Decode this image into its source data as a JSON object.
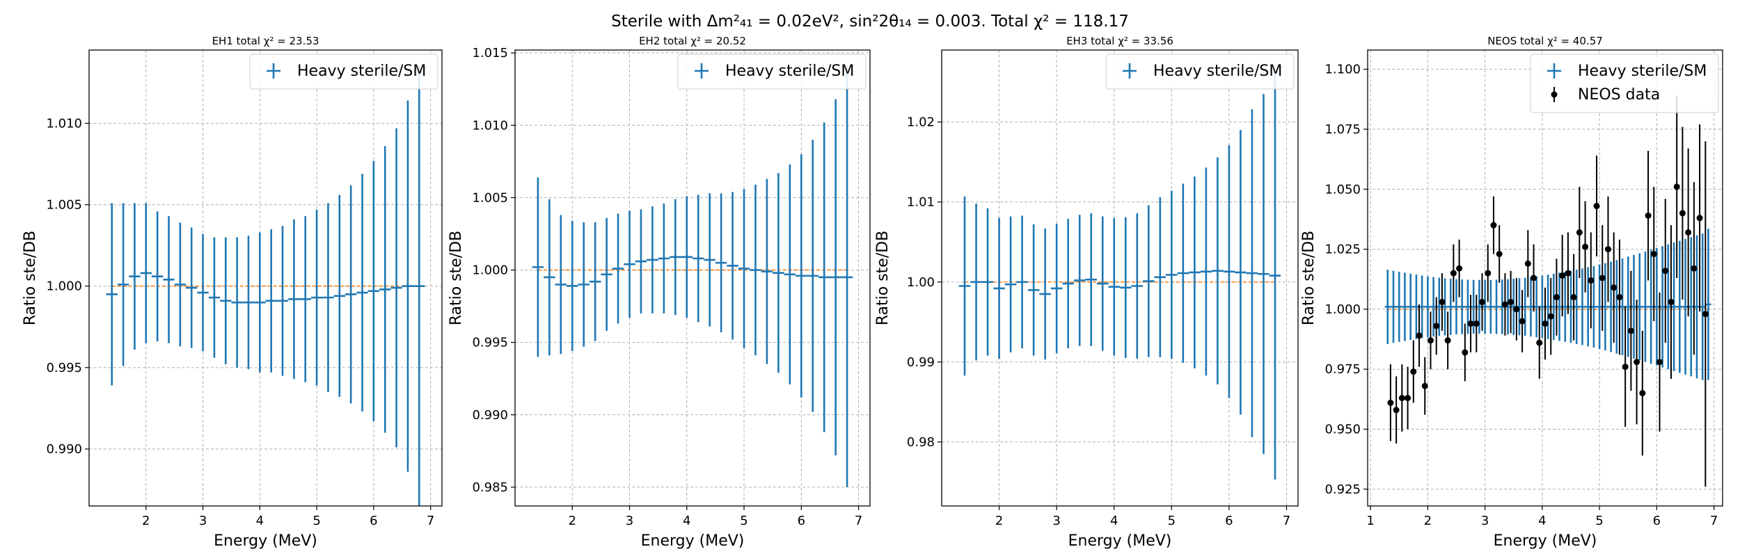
{
  "suptitle": "Sterile with Δm²₄₁ = 0.02eV², sin²2θ₁₄ = 0.003. Total χ² = 118.17",
  "colors": {
    "model": "#1f77b4",
    "reference": "#ff7f0e",
    "data": "#000000",
    "grid": "#b0b0b0"
  },
  "chart_data": [
    {
      "type": "scatter",
      "title": "EH1 total χ² = 23.53",
      "xlabel": "Energy (MeV)",
      "ylabel": "Ratio ste/DB",
      "xlim": [
        1.0,
        7.2
      ],
      "ylim": [
        0.9865,
        1.0145
      ],
      "xticks": [
        "2",
        "3",
        "4",
        "5",
        "6",
        "7"
      ],
      "yticks": [
        "0.990",
        "0.995",
        "1.000",
        "1.005",
        "1.010"
      ],
      "legend": [
        "Heavy sterile/SM"
      ],
      "legend_position": "top-right",
      "grid": true,
      "reference_line": 1.0,
      "series": [
        {
          "name": "Heavy sterile/SM",
          "x": [
            1.4,
            1.6,
            1.8,
            2.0,
            2.2,
            2.4,
            2.6,
            2.8,
            3.0,
            3.2,
            3.4,
            3.6,
            3.8,
            4.0,
            4.2,
            4.4,
            4.6,
            4.8,
            5.0,
            5.2,
            5.4,
            5.6,
            5.8,
            6.0,
            6.2,
            6.4,
            6.6,
            6.8
          ],
          "y": [
            0.9995,
            1.0001,
            1.0006,
            1.0008,
            1.0006,
            1.0004,
            1.0001,
            0.9999,
            0.9996,
            0.9993,
            0.9991,
            0.999,
            0.999,
            0.999,
            0.9991,
            0.9991,
            0.9992,
            0.9992,
            0.9993,
            0.9993,
            0.9994,
            0.9995,
            0.9996,
            0.9997,
            0.9998,
            0.9999,
            1.0,
            1.0
          ],
          "yerr": [
            0.0056,
            0.005,
            0.0045,
            0.0043,
            0.004,
            0.0039,
            0.0038,
            0.0037,
            0.0036,
            0.0037,
            0.0039,
            0.004,
            0.0041,
            0.0043,
            0.0044,
            0.0046,
            0.0049,
            0.0051,
            0.0054,
            0.0058,
            0.0062,
            0.0067,
            0.0073,
            0.008,
            0.0088,
            0.0098,
            0.0114,
            0.0135
          ]
        }
      ]
    },
    {
      "type": "scatter",
      "title": "EH2 total χ² = 20.52",
      "xlabel": "Energy (MeV)",
      "ylabel": "Ratio ste/DB",
      "xlim": [
        1.0,
        7.2
      ],
      "ylim": [
        0.9837,
        1.0152
      ],
      "xticks": [
        "2",
        "3",
        "4",
        "5",
        "6",
        "7"
      ],
      "yticks": [
        "0.985",
        "0.990",
        "0.995",
        "1.000",
        "1.005",
        "1.010",
        "1.015"
      ],
      "legend": [
        "Heavy sterile/SM"
      ],
      "legend_position": "top-right",
      "grid": true,
      "reference_line": 1.0,
      "series": [
        {
          "name": "Heavy sterile/SM",
          "x": [
            1.4,
            1.6,
            1.8,
            2.0,
            2.2,
            2.4,
            2.6,
            2.8,
            3.0,
            3.2,
            3.4,
            3.6,
            3.8,
            4.0,
            4.2,
            4.4,
            4.6,
            4.8,
            5.0,
            5.2,
            5.4,
            5.6,
            5.8,
            6.0,
            6.2,
            6.4,
            6.6,
            6.8
          ],
          "y": [
            1.0002,
            0.9995,
            0.999,
            0.9989,
            0.999,
            0.9992,
            0.9997,
            1.0001,
            1.0004,
            1.0006,
            1.0007,
            1.0008,
            1.0009,
            1.0009,
            1.0008,
            1.0007,
            1.0005,
            1.0003,
            1.0001,
            1.0,
            0.9999,
            0.9998,
            0.9997,
            0.9996,
            0.9996,
            0.9995,
            0.9995,
            0.9995
          ],
          "yerr": [
            0.0062,
            0.0054,
            0.0048,
            0.0045,
            0.0043,
            0.0041,
            0.0039,
            0.0038,
            0.0037,
            0.0036,
            0.0037,
            0.0038,
            0.004,
            0.0042,
            0.0044,
            0.0046,
            0.0048,
            0.0051,
            0.0055,
            0.0059,
            0.0064,
            0.0069,
            0.0076,
            0.0084,
            0.0094,
            0.0107,
            0.0123,
            0.0145
          ]
        }
      ]
    },
    {
      "type": "scatter",
      "title": "EH3 total χ² = 33.56",
      "xlabel": "Energy (MeV)",
      "ylabel": "Ratio ste/DB",
      "xlim": [
        1.0,
        7.2
      ],
      "ylim": [
        0.972,
        1.029
      ],
      "xticks": [
        "2",
        "3",
        "4",
        "5",
        "6",
        "7"
      ],
      "yticks": [
        "0.98",
        "0.99",
        "1.00",
        "1.01",
        "1.02"
      ],
      "legend": [
        "Heavy sterile/SM"
      ],
      "legend_position": "top-right",
      "grid": true,
      "reference_line": 1.0,
      "series": [
        {
          "name": "Heavy sterile/SM",
          "x": [
            1.4,
            1.6,
            1.8,
            2.0,
            2.2,
            2.4,
            2.6,
            2.8,
            3.0,
            3.2,
            3.4,
            3.6,
            3.8,
            4.0,
            4.2,
            4.4,
            4.6,
            4.8,
            5.0,
            5.2,
            5.4,
            5.6,
            5.8,
            6.0,
            6.2,
            6.4,
            6.6,
            6.8
          ],
          "y": [
            0.9995,
            1.0,
            1.0,
            0.9992,
            0.9997,
            1.0,
            0.999,
            0.9985,
            0.9992,
            0.9998,
            1.0002,
            1.0003,
            0.9998,
            0.9994,
            0.9993,
            0.9995,
            1.0001,
            1.0006,
            1.0009,
            1.0011,
            1.0012,
            1.0013,
            1.0014,
            1.0013,
            1.0012,
            1.0011,
            1.001,
            1.0008
          ],
          "yerr": [
            0.0112,
            0.0098,
            0.0092,
            0.0088,
            0.0085,
            0.0083,
            0.0082,
            0.0082,
            0.0081,
            0.0081,
            0.0082,
            0.0083,
            0.0084,
            0.0086,
            0.0088,
            0.0091,
            0.0095,
            0.01,
            0.0105,
            0.0112,
            0.012,
            0.013,
            0.0142,
            0.0158,
            0.0178,
            0.0205,
            0.0225,
            0.0255
          ]
        }
      ]
    },
    {
      "type": "scatter",
      "title": "NEOS total χ² = 40.57",
      "xlabel": "Energy (MeV)",
      "ylabel": "Ratio ste/DB",
      "xlim": [
        0.95,
        7.15
      ],
      "ylim": [
        0.918,
        1.108
      ],
      "xticks": [
        "1",
        "2",
        "3",
        "4",
        "5",
        "6",
        "7"
      ],
      "yticks": [
        "0.925",
        "0.950",
        "0.975",
        "1.000",
        "1.025",
        "1.050",
        "1.075",
        "1.100"
      ],
      "legend": [
        "Heavy sterile/SM",
        "NEOS data"
      ],
      "legend_position": "top-right",
      "grid": true,
      "reference_line": 1.0,
      "series": [
        {
          "name": "Heavy sterile/SM",
          "x": [
            1.3,
            1.4,
            1.5,
            1.6,
            1.7,
            1.8,
            1.9,
            2.0,
            2.1,
            2.2,
            2.3,
            2.4,
            2.5,
            2.6,
            2.7,
            2.8,
            2.9,
            3.0,
            3.1,
            3.2,
            3.3,
            3.4,
            3.5,
            3.6,
            3.7,
            3.8,
            3.9,
            4.0,
            4.1,
            4.2,
            4.3,
            4.4,
            4.5,
            4.6,
            4.7,
            4.8,
            4.9,
            5.0,
            5.1,
            5.2,
            5.3,
            5.4,
            5.5,
            5.6,
            5.7,
            5.8,
            5.9,
            6.0,
            6.1,
            6.2,
            6.3,
            6.4,
            6.5,
            6.6,
            6.7,
            6.8,
            6.9
          ],
          "y": [
            1.001,
            1.001,
            1.001,
            1.001,
            1.001,
            1.001,
            1.001,
            1.001,
            1.001,
            1.001,
            1.001,
            1.001,
            1.001,
            1.001,
            1.001,
            1.001,
            1.001,
            1.001,
            1.001,
            1.001,
            1.001,
            1.001,
            1.001,
            1.001,
            1.001,
            1.001,
            1.001,
            1.001,
            1.001,
            1.001,
            1.001,
            1.001,
            1.001,
            1.001,
            1.001,
            1.001,
            1.001,
            1.001,
            1.001,
            1.001,
            1.001,
            1.001,
            1.001,
            1.001,
            1.001,
            1.001,
            1.001,
            1.001,
            1.001,
            1.001,
            1.001,
            1.001,
            1.001,
            1.001,
            1.001,
            1.001,
            1.002
          ],
          "yerr": [
            0.0155,
            0.015,
            0.0146,
            0.0142,
            0.0138,
            0.0134,
            0.013,
            0.0127,
            0.0124,
            0.0121,
            0.0119,
            0.0117,
            0.0115,
            0.0114,
            0.0113,
            0.0112,
            0.0112,
            0.0112,
            0.0112,
            0.0113,
            0.0114,
            0.0115,
            0.0117,
            0.0119,
            0.0121,
            0.0124,
            0.0127,
            0.013,
            0.0134,
            0.0138,
            0.0142,
            0.0146,
            0.015,
            0.0155,
            0.016,
            0.0165,
            0.017,
            0.0176,
            0.0182,
            0.0188,
            0.0195,
            0.0202,
            0.0209,
            0.0216,
            0.0223,
            0.023,
            0.0238,
            0.0245,
            0.0253,
            0.026,
            0.0268,
            0.0275,
            0.0283,
            0.029,
            0.0298,
            0.0305,
            0.0315
          ]
        },
        {
          "name": "NEOS data",
          "x": [
            1.35,
            1.45,
            1.55,
            1.65,
            1.75,
            1.85,
            1.95,
            2.05,
            2.15,
            2.25,
            2.35,
            2.45,
            2.55,
            2.65,
            2.75,
            2.85,
            2.95,
            3.05,
            3.15,
            3.25,
            3.35,
            3.45,
            3.55,
            3.65,
            3.75,
            3.85,
            3.95,
            4.05,
            4.15,
            4.25,
            4.35,
            4.45,
            4.55,
            4.65,
            4.75,
            4.85,
            4.95,
            5.05,
            5.15,
            5.25,
            5.35,
            5.45,
            5.55,
            5.65,
            5.75,
            5.85,
            5.95,
            6.05,
            6.15,
            6.25,
            6.35,
            6.45,
            6.55,
            6.65,
            6.75,
            6.85
          ],
          "y": [
            0.961,
            0.958,
            0.963,
            0.963,
            0.974,
            0.989,
            0.968,
            0.987,
            0.993,
            1.003,
            0.987,
            1.015,
            1.017,
            0.982,
            0.994,
            0.994,
            1.003,
            1.015,
            1.035,
            1.023,
            1.002,
            1.003,
            1.0,
            0.995,
            1.019,
            1.013,
            0.986,
            0.994,
            0.997,
            1.005,
            1.014,
            1.015,
            1.005,
            1.032,
            1.026,
            1.012,
            1.043,
            1.013,
            1.025,
            1.009,
            1.005,
            0.976,
            0.991,
            0.978,
            0.965,
            1.039,
            1.023,
            0.978,
            1.016,
            1.003,
            1.051,
            1.04,
            1.032,
            1.017,
            1.038,
            0.998
          ],
          "yerr": [
            0.016,
            0.014,
            0.014,
            0.013,
            0.013,
            0.013,
            0.012,
            0.012,
            0.012,
            0.012,
            0.012,
            0.012,
            0.012,
            0.012,
            0.012,
            0.012,
            0.012,
            0.012,
            0.012,
            0.012,
            0.013,
            0.013,
            0.013,
            0.013,
            0.014,
            0.014,
            0.015,
            0.015,
            0.016,
            0.016,
            0.017,
            0.017,
            0.018,
            0.019,
            0.019,
            0.02,
            0.021,
            0.022,
            0.022,
            0.023,
            0.024,
            0.025,
            0.025,
            0.026,
            0.026,
            0.027,
            0.028,
            0.029,
            0.03,
            0.032,
            0.038,
            0.036,
            0.035,
            0.036,
            0.039,
            0.072
          ]
        }
      ]
    }
  ]
}
